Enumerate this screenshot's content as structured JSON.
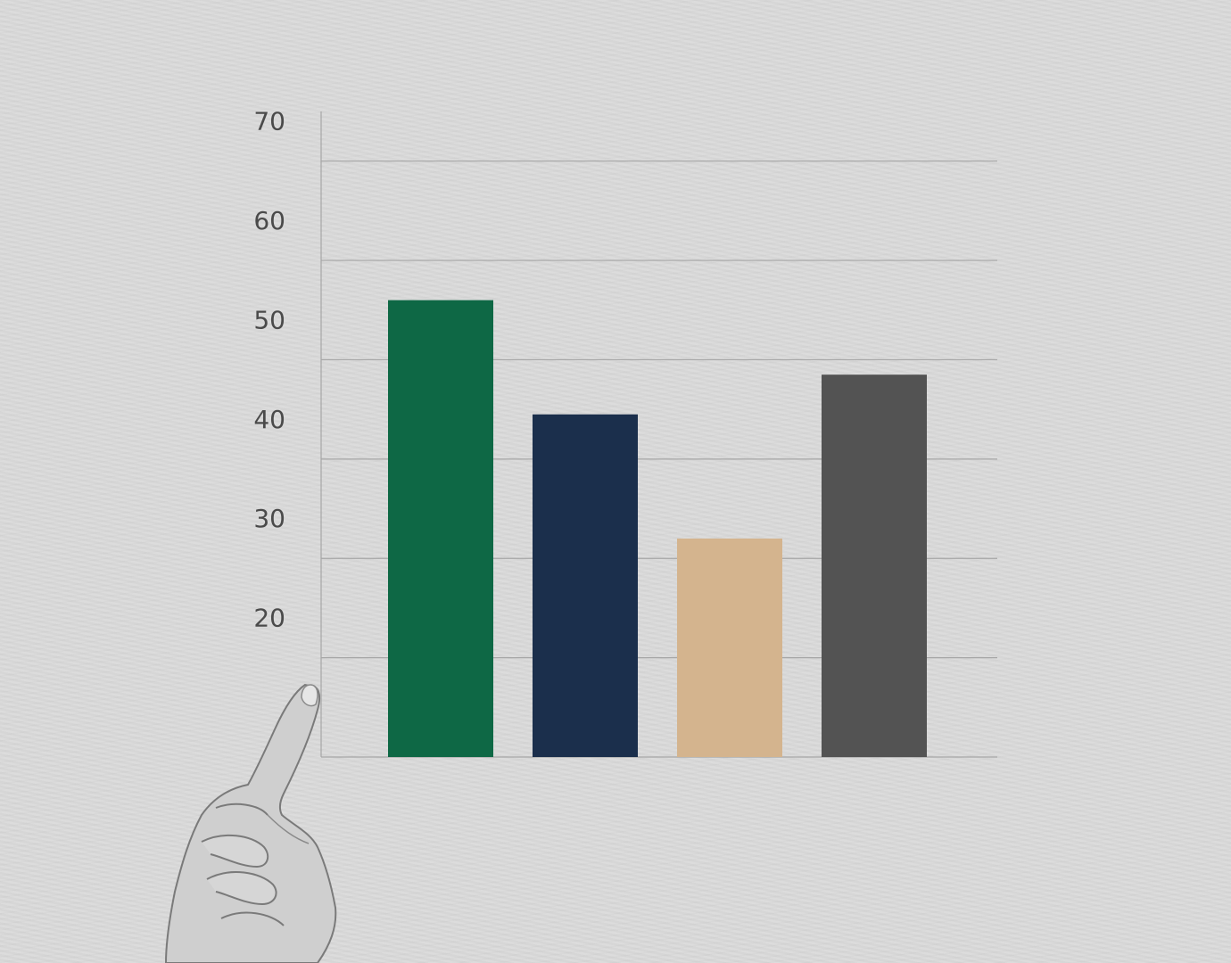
{
  "chart_data": {
    "type": "bar",
    "title": "",
    "xlabel": "",
    "ylabel": "",
    "categories": [
      "",
      "",
      "",
      ""
    ],
    "values": [
      56,
      44.5,
      32,
      48.5
    ],
    "colors": [
      "#0e6845",
      "#1b2f4c",
      "#d4b48e",
      "#535353"
    ],
    "ylim": [
      10,
      75
    ],
    "yticks": [
      20,
      30,
      40,
      50,
      60,
      70
    ],
    "ytick_labels": [
      "20",
      "30",
      "40",
      "50",
      "60",
      "70"
    ],
    "grid": true,
    "legend": "none"
  },
  "decoration": {
    "hand": "pointing-hand"
  }
}
